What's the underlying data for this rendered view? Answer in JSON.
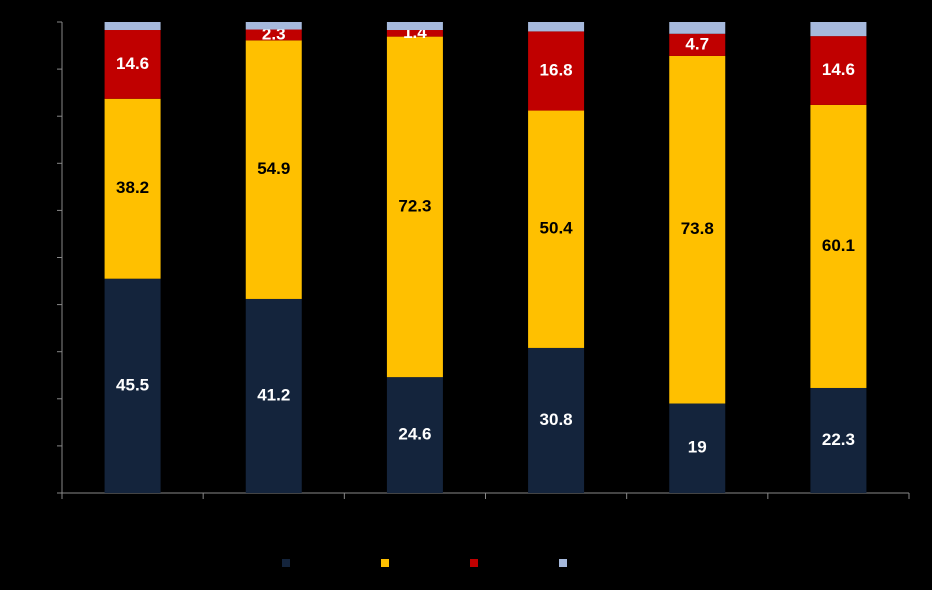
{
  "chart_data": {
    "type": "stacked_bar",
    "categories": [
      null,
      null,
      null,
      null,
      null,
      null
    ],
    "series": [
      {
        "color": "#14243c",
        "label_color": "#ffffff",
        "show_labels": true,
        "values": [
          45.5,
          41.2,
          24.6,
          30.8,
          19,
          22.3
        ]
      },
      {
        "color": "#ffc000",
        "label_color": "#000000",
        "show_labels": true,
        "values": [
          38.2,
          54.9,
          72.3,
          50.4,
          73.8,
          60.1
        ]
      },
      {
        "color": "#c00000",
        "label_color": "#ffffff",
        "show_labels": true,
        "values": [
          14.6,
          2.3,
          1.4,
          16.8,
          4.7,
          14.6
        ]
      },
      {
        "color": "#a6b9dc",
        "label_color": "#000000",
        "show_labels": false,
        "values": [
          1.7,
          1.6,
          1.7,
          2,
          2.5,
          3
        ]
      }
    ],
    "ylim": [
      0,
      100
    ],
    "yticks": [
      0,
      10,
      20,
      30,
      40,
      50,
      60,
      70,
      80,
      90,
      100
    ],
    "grid": false,
    "legend": "bottom"
  }
}
